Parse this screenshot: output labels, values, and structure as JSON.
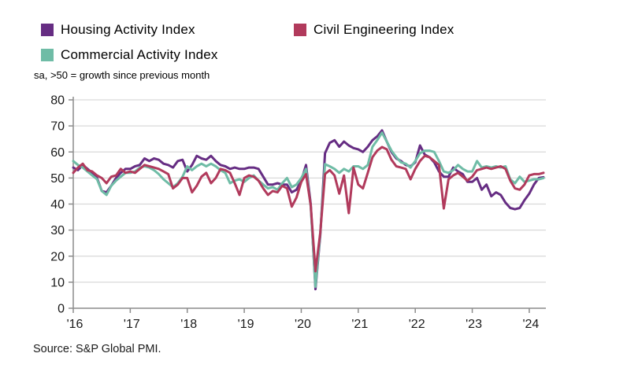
{
  "legend": [
    {
      "label": "Housing Activity Index",
      "color": "#662d83"
    },
    {
      "label": "Civil Engineering Index",
      "color": "#b13a5c"
    },
    {
      "label": "Commercial Activity Index",
      "color": "#6fbca6"
    }
  ],
  "subtitle": "sa, >50 = growth since previous month",
  "source": "Source: S&P Global PMI.",
  "chart_data": {
    "type": "line",
    "x_start": {
      "year": 2016,
      "month": 1
    },
    "x_frequency": "monthly",
    "x_tick_labels": [
      "'16",
      "'17",
      "'18",
      "'19",
      "'20",
      "'21",
      "'22",
      "'23",
      "'24"
    ],
    "ylim": [
      0,
      80
    ],
    "ytick_step": 10,
    "grid": "horizontal",
    "legend_position": "top-left",
    "axis_color": "#8c8c8c",
    "grid_color": "#d9d9d9",
    "tick_label_color": "#1a1a1a",
    "series": [
      {
        "name": "Housing Activity Index",
        "color": "#662d83",
        "values": [
          54,
          53,
          55,
          53.5,
          52,
          50,
          45,
          44.5,
          47,
          50,
          52,
          53.5,
          53.5,
          54.5,
          55,
          57.5,
          56.5,
          57.5,
          57,
          55.5,
          55,
          54,
          56.5,
          57,
          52.5,
          55,
          58.5,
          57.5,
          57,
          58.5,
          56.5,
          55,
          54.5,
          53.5,
          54,
          53.5,
          53.5,
          54,
          54,
          53.5,
          50.5,
          47.5,
          47.5,
          48,
          47.5,
          47.5,
          44.5,
          45.5,
          49,
          55,
          40,
          7.3,
          28,
          59.5,
          63.5,
          64.5,
          62,
          64,
          62.5,
          61.5,
          61,
          60,
          62,
          64.5,
          66,
          68.3,
          64,
          60,
          57.5,
          56.5,
          55,
          54.5,
          56,
          62.5,
          59,
          58,
          56,
          52.5,
          50.5,
          50.5,
          54,
          52.5,
          51.5,
          48.5,
          48.5,
          50,
          45.5,
          47.5,
          43,
          44.5,
          43.5,
          40.5,
          38.5,
          38,
          38.5,
          41.5,
          44,
          47.5,
          50,
          50.3
        ]
      },
      {
        "name": "Civil Engineering Index",
        "color": "#b13a5c",
        "values": [
          52,
          54,
          55.5,
          53,
          52.5,
          51,
          50,
          48,
          50.5,
          51,
          53.5,
          52,
          52.5,
          52,
          53.5,
          55,
          54.5,
          54,
          53.5,
          52.5,
          51.5,
          46,
          47.5,
          50,
          50,
          44.5,
          47,
          50.5,
          52,
          48,
          50,
          53.5,
          53,
          52,
          48,
          43.5,
          50,
          51,
          50.5,
          49,
          46,
          43.5,
          45,
          44.5,
          47,
          46,
          39,
          42.5,
          48.5,
          51.5,
          39.5,
          14.2,
          29,
          51.5,
          53,
          51,
          44,
          51,
          36.5,
          54,
          47.5,
          46,
          52,
          58,
          60.5,
          61.9,
          61,
          57,
          54.5,
          54,
          53.5,
          49.5,
          53.5,
          56.5,
          58.5,
          58,
          56.5,
          55,
          38.3,
          49.5,
          51,
          52,
          50.5,
          49,
          50.5,
          53,
          53.5,
          54,
          53.5,
          54,
          54.5,
          53.5,
          49,
          46,
          45.5,
          47.5,
          51,
          51.5,
          51.5,
          52
        ]
      },
      {
        "name": "Commercial Activity Index",
        "color": "#6fbca6",
        "values": [
          56.5,
          55,
          54,
          52.5,
          51,
          49.5,
          45,
          43.5,
          47,
          49,
          50.5,
          52,
          52,
          52.5,
          54,
          54.5,
          54,
          53,
          51.5,
          49.5,
          48,
          46.5,
          48,
          50.5,
          54.5,
          53,
          54.5,
          55.5,
          54.5,
          55.5,
          54.5,
          53,
          52,
          48,
          49,
          49.5,
          48.5,
          50,
          51,
          49,
          47.5,
          46,
          46.5,
          45.5,
          48,
          50,
          46.5,
          47.5,
          50,
          53.5,
          39,
          8.2,
          28.9,
          55.3,
          54.5,
          53.5,
          52,
          53.5,
          52.5,
          54.5,
          54.5,
          53.5,
          55,
          62,
          64.5,
          67.4,
          64,
          60.5,
          58,
          56,
          55.5,
          54,
          56.5,
          59.5,
          60.5,
          60.5,
          60,
          56.5,
          52.5,
          52,
          53,
          55,
          53.5,
          52.5,
          52.5,
          56.5,
          54,
          54.5,
          54,
          54.5,
          54,
          54.5,
          49.5,
          48,
          50.5,
          48.5,
          49,
          49.5,
          49.5,
          50
        ]
      }
    ]
  }
}
